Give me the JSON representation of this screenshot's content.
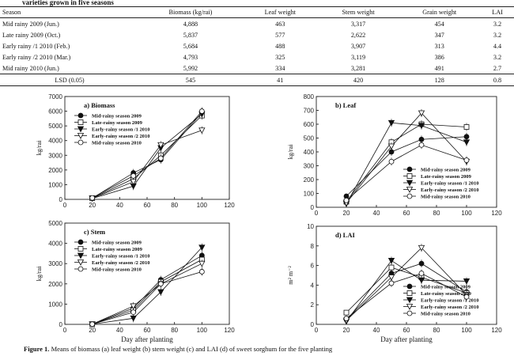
{
  "table_caption": "varieties grown in five seasons",
  "table": {
    "headers": [
      "Season",
      "Biomass (kg/rai)",
      "Leaf weight",
      "Stem weight",
      "Grain weight",
      "LAI"
    ],
    "rows": [
      [
        "Mid rainy 2009 (Jun.)",
        "4,888",
        "463",
        "3,317",
        "454",
        "3.2"
      ],
      [
        "Late rainy 2009 (Oct.)",
        "5,837",
        "577",
        "2,622",
        "347",
        "3.2"
      ],
      [
        "Early rainy /1 2010 (Feb.)",
        "5,684",
        "488",
        "3,907",
        "313",
        "4.4"
      ],
      [
        "Early rainy /2 2010 (Mar.)",
        "4,793",
        "325",
        "3,119",
        "386",
        "3.2"
      ],
      [
        "Mid rainy 2010 (Jun.)",
        "5,992",
        "334",
        "3,281",
        "491",
        "2.7"
      ]
    ],
    "lsd": [
      "LSD (0.05)",
      "545",
      "41",
      "420",
      "128",
      "0.8"
    ]
  },
  "figure_caption_bold": "Figure 1.",
  "figure_caption_text": " Means of biomass (a) leaf weight (b) stem weight (c) and LAI (d) of sweet sorghum for the five planting",
  "chart_data": [
    {
      "type": "line",
      "title": "a) Biomass",
      "ylabel": "kg/rai",
      "xlabel": "",
      "x": [
        20,
        50,
        70,
        100
      ],
      "xlim": [
        0,
        120
      ],
      "xticks": [
        0,
        20,
        40,
        60,
        80,
        100,
        120
      ],
      "ylim": [
        0,
        7000
      ],
      "yticks": [
        0,
        1000,
        2000,
        3000,
        4000,
        5000,
        6000,
        7000
      ],
      "legend_position": "top-left",
      "series": [
        {
          "name": "Mid-rainy season 2009",
          "marker": "filled-circle",
          "values": [
            80,
            1800,
            2700,
            5900
          ]
        },
        {
          "name": "Late-rainy season 2009",
          "marker": "open-square",
          "values": [
            80,
            1400,
            3000,
            5700
          ]
        },
        {
          "name": "Early-rainy season /1 2010",
          "marker": "filled-triangle-down",
          "values": [
            60,
            900,
            3500,
            5800
          ]
        },
        {
          "name": "Early-rainy season /2 2010",
          "marker": "open-triangle-down",
          "values": [
            70,
            1200,
            3700,
            4700
          ]
        },
        {
          "name": "Mid-rainy season 2010",
          "marker": "open-circle",
          "values": [
            100,
            1600,
            2800,
            6000
          ]
        }
      ]
    },
    {
      "type": "line",
      "title": "b) Leaf",
      "ylabel": "kg/rai",
      "xlabel": "",
      "x": [
        20,
        50,
        70,
        100
      ],
      "xlim": [
        0,
        120
      ],
      "xticks": [
        0,
        20,
        40,
        60,
        80,
        100,
        120
      ],
      "ylim": [
        0,
        800
      ],
      "yticks": [
        0,
        100,
        200,
        300,
        400,
        500,
        600,
        700,
        800
      ],
      "legend_position": "bottom-right",
      "series": [
        {
          "name": "Mid-rainy season 2009",
          "marker": "filled-circle",
          "values": [
            80,
            400,
            490,
            510
          ]
        },
        {
          "name": "Late-rainy season 2009",
          "marker": "open-square",
          "values": [
            40,
            470,
            600,
            580
          ]
        },
        {
          "name": "Early-rainy season /1 2010",
          "marker": "filled-triangle-down",
          "values": [
            25,
            610,
            590,
            470
          ]
        },
        {
          "name": "Early-rainy season /2 2010",
          "marker": "open-triangle-down",
          "values": [
            30,
            440,
            680,
            330
          ]
        },
        {
          "name": "Mid-rainy season 2010",
          "marker": "open-circle",
          "values": [
            50,
            330,
            450,
            340
          ]
        }
      ]
    },
    {
      "type": "line",
      "title": "c) Stem",
      "ylabel": "kg/rai",
      "xlabel": "Day after planting",
      "x": [
        20,
        50,
        70,
        100
      ],
      "xlim": [
        0,
        120
      ],
      "xticks": [
        0,
        20,
        40,
        60,
        80,
        100,
        120
      ],
      "ylim": [
        0,
        5000
      ],
      "yticks": [
        0,
        1000,
        2000,
        3000,
        4000,
        5000
      ],
      "legend_position": "top-left",
      "series": [
        {
          "name": "Mid-rainy season 2009",
          "marker": "filled-circle",
          "values": [
            10,
            800,
            2200,
            3400
          ]
        },
        {
          "name": "Late-rainy season 2009",
          "marker": "open-square",
          "values": [
            10,
            700,
            2100,
            3200
          ]
        },
        {
          "name": "Early-rainy season /1 2010",
          "marker": "filled-triangle-down",
          "values": [
            10,
            300,
            1600,
            3800
          ]
        },
        {
          "name": "Early-rainy season /2 2010",
          "marker": "open-triangle-down",
          "values": [
            10,
            900,
            2000,
            3000
          ]
        },
        {
          "name": "Mid-rainy season 2010",
          "marker": "open-circle",
          "values": [
            10,
            600,
            2000,
            2600
          ]
        }
      ]
    },
    {
      "type": "line",
      "title": "d) LAI",
      "ylabel": "m² m⁻²",
      "xlabel": "Day after planting",
      "x": [
        20,
        50,
        70,
        100
      ],
      "xlim": [
        0,
        120
      ],
      "xticks": [
        0,
        20,
        40,
        60,
        80,
        100,
        120
      ],
      "ylim": [
        0,
        10
      ],
      "yticks": [
        0,
        2,
        4,
        6,
        8,
        10
      ],
      "legend_position": "bottom-right",
      "series": [
        {
          "name": "Mid-rainy season 2009",
          "marker": "filled-circle",
          "values": [
            0.5,
            5.2,
            6.2,
            3.3
          ]
        },
        {
          "name": "Late-rainy season 2009",
          "marker": "open-square",
          "values": [
            1.2,
            5.8,
            4.8,
            3.2
          ]
        },
        {
          "name": "Early-rainy season /1 2010",
          "marker": "filled-triangle-down",
          "values": [
            0.3,
            6.5,
            4.5,
            4.4
          ]
        },
        {
          "name": "Early-rainy season /2 2010",
          "marker": "open-triangle-down",
          "values": [
            0.4,
            4.8,
            7.8,
            3.0
          ]
        },
        {
          "name": "Mid-rainy season 2010",
          "marker": "open-circle",
          "values": [
            0.6,
            4.2,
            5.2,
            2.8
          ]
        }
      ]
    }
  ]
}
